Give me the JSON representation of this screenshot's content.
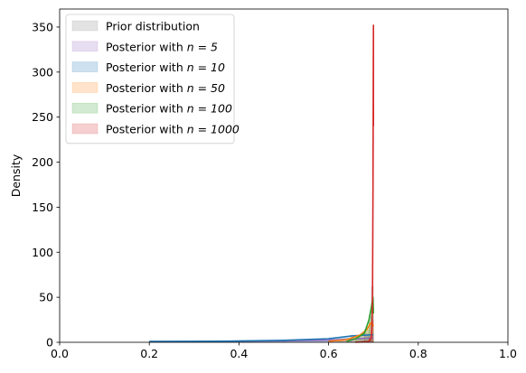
{
  "chart_data": {
    "type": "area",
    "title": "",
    "xlabel": "",
    "ylabel": "Density",
    "xlim": [
      0.0,
      1.0
    ],
    "ylim": [
      0,
      370
    ],
    "xticks": [
      "0.0",
      "0.2",
      "0.4",
      "0.6",
      "0.8",
      "1.0"
    ],
    "yticks": [
      "0",
      "50",
      "100",
      "150",
      "200",
      "250",
      "300",
      "350"
    ],
    "grid": false,
    "legend_position": "top-left",
    "series": [
      {
        "name": "Prior distribution",
        "prefix": "Prior distribution",
        "math": "",
        "color": "#7f7f7f",
        "hist": [
          [
            0.68,
            0.69,
            10
          ],
          [
            0.69,
            0.695,
            30
          ],
          [
            0.695,
            0.7,
            62
          ]
        ],
        "kde": []
      },
      {
        "name": "Posterior with n = 5",
        "prefix": "Posterior with ",
        "math": "n = 5",
        "color": "#9467bd",
        "hist": [
          [
            0.2,
            0.3,
            1
          ],
          [
            0.3,
            0.4,
            1.2
          ],
          [
            0.4,
            0.5,
            1.5
          ],
          [
            0.5,
            0.6,
            2
          ],
          [
            0.6,
            0.65,
            3
          ],
          [
            0.65,
            0.7,
            5
          ]
        ],
        "kde": [
          [
            0.2,
            0.8
          ],
          [
            0.3,
            1.0
          ],
          [
            0.4,
            1.3
          ],
          [
            0.5,
            1.7
          ],
          [
            0.6,
            2.5
          ],
          [
            0.65,
            3.5
          ],
          [
            0.7,
            5.0
          ]
        ]
      },
      {
        "name": "Posterior with n = 10",
        "prefix": "Posterior with ",
        "math": "n = 10",
        "color": "#1f77b4",
        "hist": [
          [
            0.2,
            0.3,
            1
          ],
          [
            0.3,
            0.4,
            1.2
          ],
          [
            0.4,
            0.5,
            1.6
          ],
          [
            0.5,
            0.6,
            2.5
          ],
          [
            0.6,
            0.65,
            5
          ],
          [
            0.65,
            0.7,
            8
          ]
        ],
        "kde": [
          [
            0.2,
            0.9
          ],
          [
            0.3,
            1.1
          ],
          [
            0.4,
            1.4
          ],
          [
            0.5,
            2.2
          ],
          [
            0.6,
            4.0
          ],
          [
            0.65,
            7.0
          ],
          [
            0.7,
            8.5
          ]
        ]
      },
      {
        "name": "Posterior with n = 50",
        "prefix": "Posterior with ",
        "math": "n = 50",
        "color": "#ff7f0e",
        "hist": [
          [
            0.62,
            0.66,
            3
          ],
          [
            0.66,
            0.68,
            8
          ],
          [
            0.68,
            0.69,
            14
          ],
          [
            0.69,
            0.7,
            22
          ]
        ],
        "kde": [
          [
            0.6,
            1
          ],
          [
            0.64,
            3
          ],
          [
            0.67,
            8
          ],
          [
            0.685,
            14
          ],
          [
            0.695,
            22
          ],
          [
            0.7,
            18
          ]
        ]
      },
      {
        "name": "Posterior with n = 100",
        "prefix": "Posterior with ",
        "math": "n = 100",
        "color": "#2ca02c",
        "hist": [
          [
            0.66,
            0.68,
            5
          ],
          [
            0.68,
            0.69,
            14
          ],
          [
            0.69,
            0.695,
            28
          ],
          [
            0.695,
            0.7,
            40
          ]
        ],
        "kde": [
          [
            0.64,
            1
          ],
          [
            0.66,
            4
          ],
          [
            0.68,
            10
          ],
          [
            0.69,
            25
          ],
          [
            0.695,
            38
          ],
          [
            0.699,
            50
          ],
          [
            0.7,
            32
          ]
        ]
      },
      {
        "name": "Posterior with n = 1000",
        "prefix": "Posterior with ",
        "math": "n = 1000",
        "color": "#d62728",
        "hist": [
          [
            0.69,
            0.695,
            6
          ],
          [
            0.695,
            0.698,
            15
          ],
          [
            0.698,
            0.7,
            25
          ]
        ],
        "kde": [
          [
            0.66,
            0
          ],
          [
            0.69,
            1
          ],
          [
            0.695,
            5
          ],
          [
            0.697,
            20
          ],
          [
            0.698,
            60
          ],
          [
            0.699,
            170
          ],
          [
            0.7,
            352
          ],
          [
            0.7,
            240
          ]
        ]
      }
    ]
  }
}
